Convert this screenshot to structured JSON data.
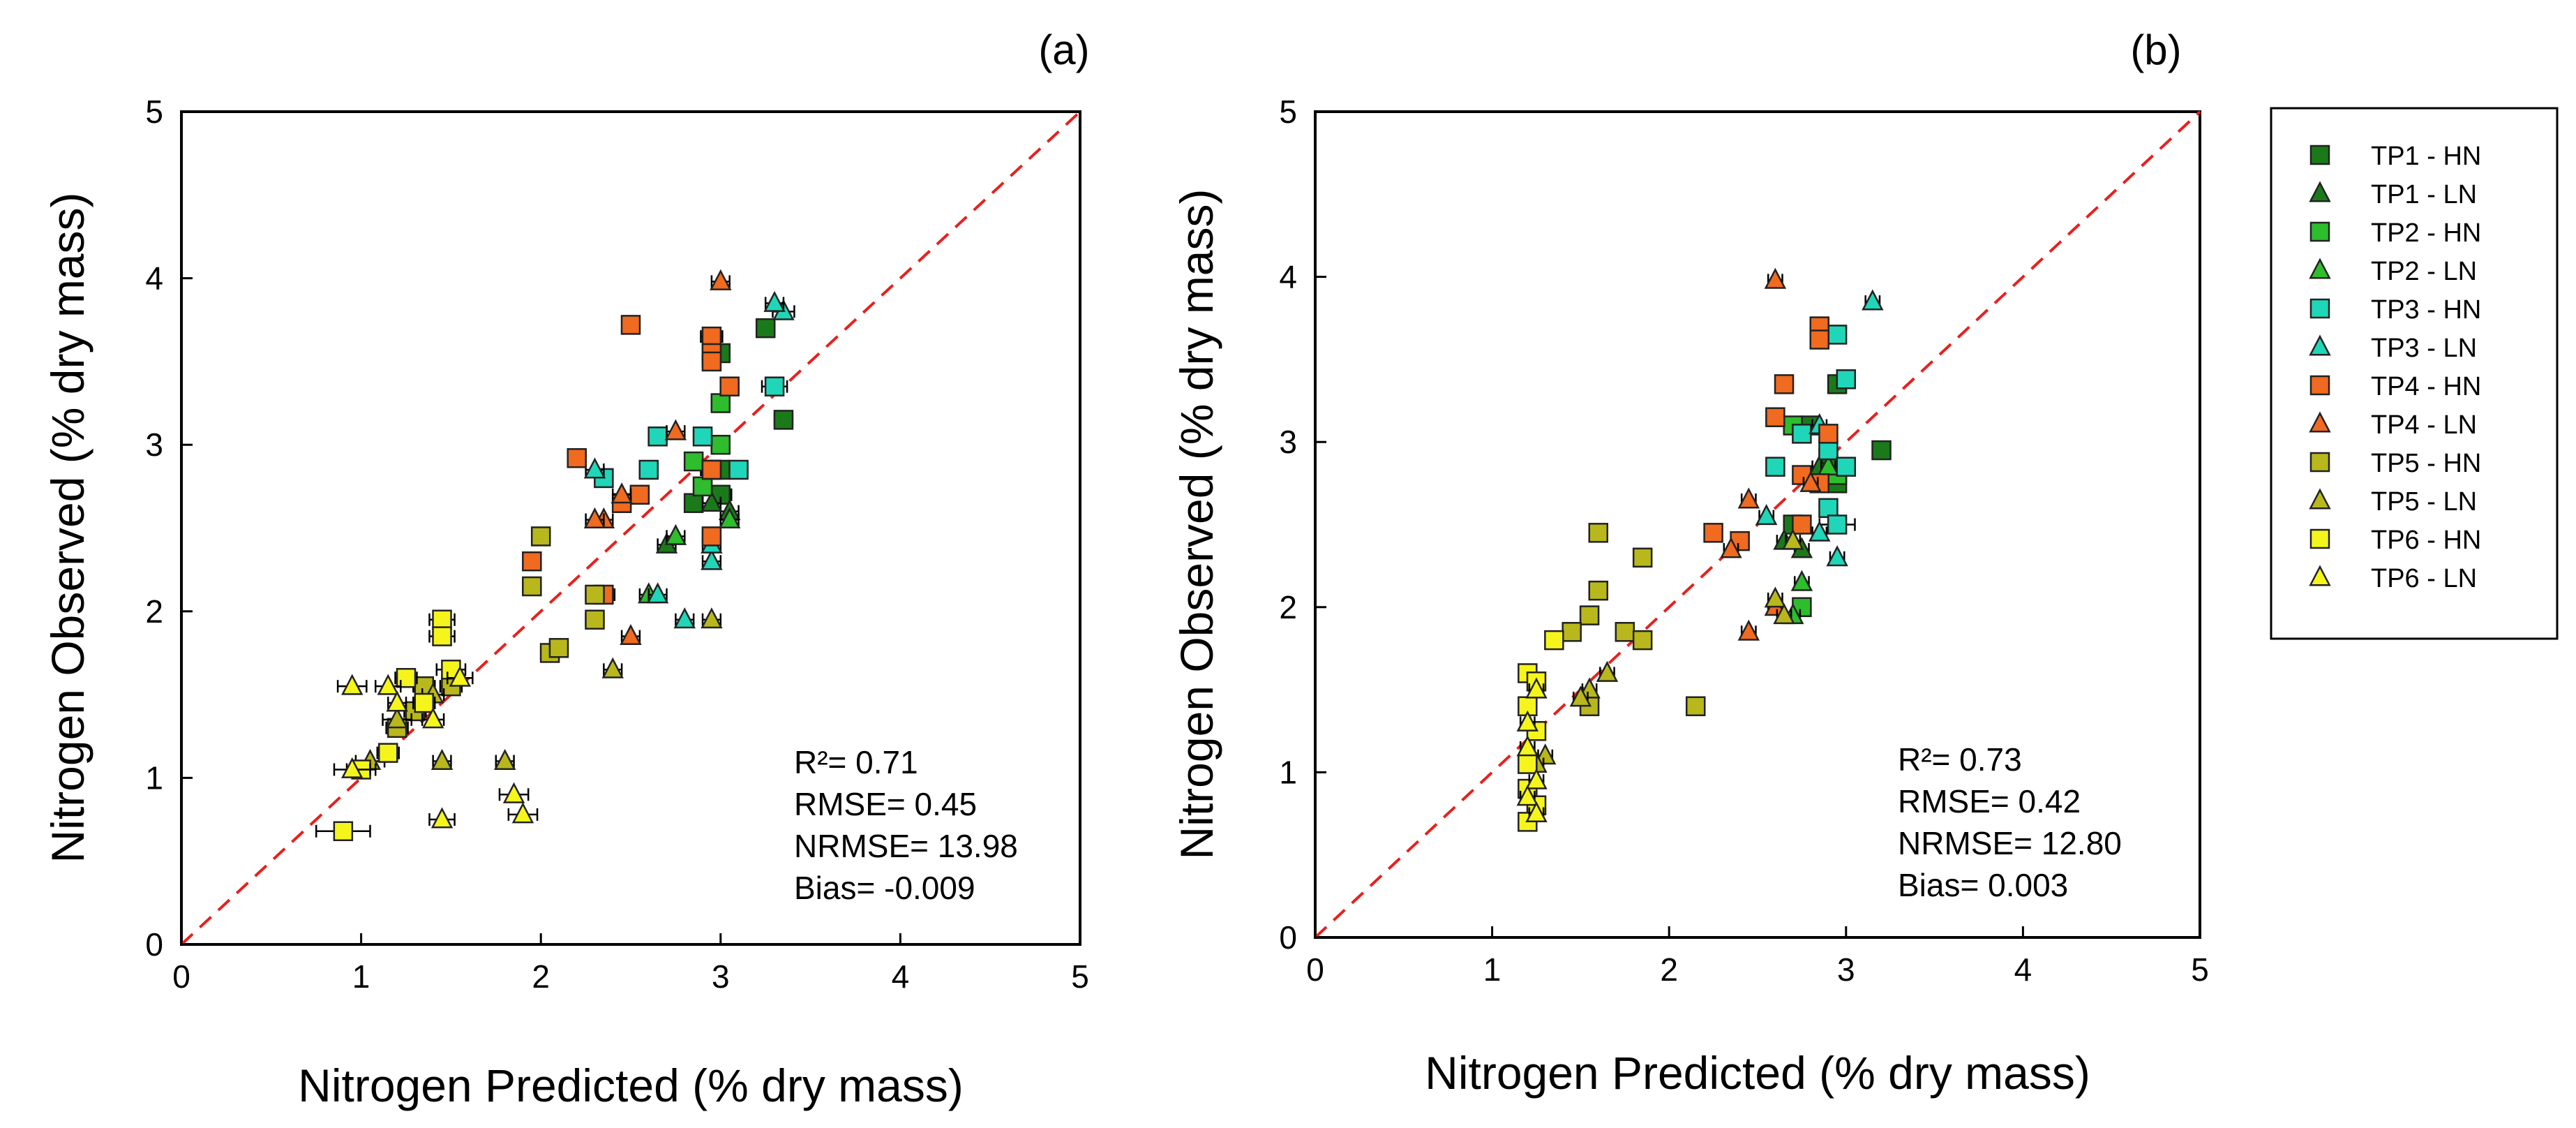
{
  "figure": {
    "legend": [
      {
        "label": "TP1 - HN",
        "marker": "square",
        "color": "#1a7a1a"
      },
      {
        "label": "TP1 - LN",
        "marker": "triangle",
        "color": "#1a7a1a"
      },
      {
        "label": "TP2 - HN",
        "marker": "square",
        "color": "#2dbd2d"
      },
      {
        "label": "TP2 - LN",
        "marker": "triangle",
        "color": "#2dbd2d"
      },
      {
        "label": "TP3 - HN",
        "marker": "square",
        "color": "#1fd6b8"
      },
      {
        "label": "TP3 - LN",
        "marker": "triangle",
        "color": "#1fd6b8"
      },
      {
        "label": "TP4 - HN",
        "marker": "square",
        "color": "#f06a1f"
      },
      {
        "label": "TP4 - LN",
        "marker": "triangle",
        "color": "#f06a1f"
      },
      {
        "label": "TP5 - HN",
        "marker": "square",
        "color": "#b8b81c"
      },
      {
        "label": "TP5 - LN",
        "marker": "triangle",
        "color": "#b8b81c"
      },
      {
        "label": "TP6 - HN",
        "marker": "square",
        "color": "#f5f51c"
      },
      {
        "label": "TP6 - LN",
        "marker": "triangle",
        "color": "#f5f51c"
      }
    ],
    "colors": {
      "reference_line": "#e8201e",
      "marker_edge": "#222222",
      "axis": "#000000"
    }
  },
  "chart_data": [
    {
      "panel": "(a)",
      "type": "scatter",
      "xlabel": "Nitrogen Predicted (% dry mass)",
      "ylabel": "Nitrogen Observed (% dry mass)",
      "xlim": [
        0,
        5
      ],
      "ylim": [
        0,
        5
      ],
      "xticks": [
        "0",
        "1",
        "2",
        "3",
        "4",
        "5"
      ],
      "yticks": [
        "0",
        "1",
        "2",
        "3",
        "4",
        "5"
      ],
      "reference_line": "1:1",
      "stats": [
        "R²= 0.71",
        "RMSE= 0.45",
        "NRMSE= 13.98",
        "Bias= -0.009"
      ],
      "series": [
        {
          "name": "TP1 - HN",
          "points": [
            [
              3.25,
              3.7,
              0.05
            ],
            [
              3.35,
              3.15,
              0.05
            ],
            [
              3.0,
              3.55,
              0.05
            ],
            [
              2.95,
              2.85,
              0.06
            ],
            [
              3.0,
              2.7,
              0.06
            ],
            [
              2.85,
              2.65,
              0.05
            ],
            [
              3.0,
              2.85,
              0.05
            ]
          ]
        },
        {
          "name": "TP1 - LN",
          "points": [
            [
              3.05,
              2.6,
              0.05
            ],
            [
              2.95,
              2.65,
              0.05
            ],
            [
              2.7,
              2.4,
              0.05
            ]
          ]
        },
        {
          "name": "TP2 - HN",
          "points": [
            [
              3.0,
              3.25,
              0.05
            ],
            [
              3.0,
              3.0,
              0.05
            ],
            [
              2.9,
              2.75,
              0.05
            ],
            [
              2.85,
              2.9,
              0.05
            ]
          ]
        },
        {
          "name": "TP2 - LN",
          "points": [
            [
              3.05,
              2.55,
              0.05
            ],
            [
              2.6,
              2.1,
              0.05
            ],
            [
              2.75,
              2.45,
              0.05
            ]
          ]
        },
        {
          "name": "TP3 - HN",
          "points": [
            [
              3.3,
              3.35,
              0.07
            ],
            [
              3.1,
              2.85,
              0.05
            ],
            [
              2.65,
              3.05,
              0.05
            ],
            [
              2.6,
              2.85,
              0.05
            ],
            [
              2.9,
              3.05,
              0.05
            ],
            [
              2.95,
              2.85,
              0.05
            ],
            [
              2.35,
              2.8,
              0.05
            ]
          ]
        },
        {
          "name": "TP3 - LN",
          "points": [
            [
              3.35,
              3.8,
              0.06
            ],
            [
              3.3,
              3.85,
              0.05
            ],
            [
              2.95,
              2.3,
              0.05
            ],
            [
              2.95,
              2.4,
              0.05
            ],
            [
              2.8,
              1.95,
              0.05
            ],
            [
              2.65,
              2.1,
              0.05
            ],
            [
              2.3,
              2.85,
              0.05
            ]
          ]
        },
        {
          "name": "TP4 - HN",
          "points": [
            [
              2.5,
              3.72,
              0.04
            ],
            [
              2.95,
              3.65,
              0.06
            ],
            [
              2.95,
              3.55,
              0.05
            ],
            [
              2.95,
              3.5,
              0.05
            ],
            [
              3.05,
              3.35,
              0.05
            ],
            [
              2.2,
              2.92,
              0.05
            ],
            [
              2.95,
              2.85,
              0.05
            ],
            [
              2.55,
              2.7,
              0.05
            ],
            [
              1.95,
              2.3,
              0.04
            ],
            [
              2.35,
              2.1,
              0.06
            ],
            [
              2.45,
              2.65,
              0.05
            ],
            [
              2.95,
              2.45,
              0.05
            ]
          ]
        },
        {
          "name": "TP4 - LN",
          "points": [
            [
              3.0,
              3.98,
              0.05
            ],
            [
              2.75,
              3.08,
              0.05
            ],
            [
              2.35,
              2.55,
              0.05
            ],
            [
              2.45,
              2.7,
              0.05
            ],
            [
              2.5,
              1.85,
              0.05
            ],
            [
              2.3,
              2.55,
              0.05
            ]
          ]
        },
        {
          "name": "TP5 - HN",
          "points": [
            [
              2.0,
              2.45,
              0.05
            ],
            [
              1.95,
              2.15,
              0.05
            ],
            [
              2.05,
              1.75,
              0.05
            ],
            [
              2.1,
              1.78,
              0.05
            ],
            [
              2.3,
              1.95,
              0.05
            ],
            [
              2.3,
              2.1,
              0.05
            ],
            [
              1.35,
              1.55,
              0.06
            ],
            [
              1.3,
              1.4,
              0.06
            ],
            [
              1.5,
              1.55,
              0.06
            ],
            [
              1.2,
              1.3,
              0.06
            ]
          ]
        },
        {
          "name": "TP5 - LN",
          "points": [
            [
              2.4,
              1.65,
              0.05
            ],
            [
              2.95,
              1.95,
              0.05
            ],
            [
              1.8,
              1.1,
              0.05
            ],
            [
              1.45,
              1.1,
              0.05
            ],
            [
              1.05,
              1.1,
              0.08
            ],
            [
              1.2,
              1.35,
              0.08
            ],
            [
              1.4,
              1.5,
              0.06
            ]
          ]
        },
        {
          "name": "TP6 - HN",
          "points": [
            [
              1.45,
              1.95,
              0.07
            ],
            [
              1.45,
              1.85,
              0.07
            ],
            [
              1.5,
              1.65,
              0.08
            ],
            [
              1.35,
              1.45,
              0.06
            ],
            [
              1.15,
              1.15,
              0.06
            ],
            [
              0.9,
              0.68,
              0.15
            ],
            [
              1.0,
              1.05,
              0.08
            ],
            [
              1.25,
              1.6,
              0.06
            ]
          ]
        },
        {
          "name": "TP6 - LN",
          "points": [
            [
              0.95,
              1.55,
              0.08
            ],
            [
              1.15,
              1.55,
              0.07
            ],
            [
              1.4,
              1.35,
              0.06
            ],
            [
              1.45,
              0.75,
              0.07
            ],
            [
              1.85,
              0.9,
              0.08
            ],
            [
              1.9,
              0.78,
              0.08
            ],
            [
              1.55,
              1.6,
              0.07
            ],
            [
              0.95,
              1.05,
              0.1
            ],
            [
              1.2,
              1.45,
              0.05
            ]
          ]
        }
      ]
    },
    {
      "panel": "(b)",
      "type": "scatter",
      "xlabel": "Nitrogen Predicted (% dry mass)",
      "ylabel": "Nitrogen Observed (% dry mass)",
      "xlim": [
        0,
        5
      ],
      "ylim": [
        0,
        5
      ],
      "xticks": [
        "0",
        "1",
        "2",
        "3",
        "4",
        "5"
      ],
      "yticks": [
        "0",
        "1",
        "2",
        "3",
        "4",
        "5"
      ],
      "reference_line": "1:1",
      "stats": [
        "R²= 0.73",
        "RMSE= 0.42",
        "NRMSE= 12.80",
        "Bias= 0.003"
      ],
      "series": [
        {
          "name": "TP1 - HN",
          "points": [
            [
              3.2,
              2.95,
              0.04
            ],
            [
              2.95,
              3.35,
              0.04
            ],
            [
              2.8,
              3.1,
              0.04
            ],
            [
              2.95,
              2.75,
              0.04
            ],
            [
              2.7,
              2.5,
              0.04
            ],
            [
              2.9,
              2.9,
              0.04
            ]
          ]
        },
        {
          "name": "TP1 - LN",
          "points": [
            [
              2.65,
              2.4,
              0.04
            ],
            [
              2.85,
              2.85,
              0.04
            ],
            [
              2.75,
              2.35,
              0.04
            ]
          ]
        },
        {
          "name": "TP2 - HN",
          "points": [
            [
              2.7,
              3.1,
              0.04
            ],
            [
              2.95,
              2.8,
              0.04
            ],
            [
              2.75,
              2.0,
              0.04
            ]
          ]
        },
        {
          "name": "TP2 - LN",
          "points": [
            [
              2.75,
              2.15,
              0.04
            ],
            [
              2.7,
              1.95,
              0.04
            ],
            [
              2.9,
              2.85,
              0.04
            ]
          ]
        },
        {
          "name": "TP3 - HN",
          "points": [
            [
              3.0,
              3.38,
              0.04
            ],
            [
              2.95,
              3.65,
              0.04
            ],
            [
              2.75,
              3.05,
              0.04
            ],
            [
              2.9,
              2.95,
              0.04
            ],
            [
              3.0,
              2.85,
              0.04
            ],
            [
              2.6,
              2.85,
              0.04
            ],
            [
              2.9,
              2.6,
              0.04
            ],
            [
              2.95,
              2.5,
              0.1
            ]
          ]
        },
        {
          "name": "TP3 - LN",
          "points": [
            [
              3.15,
              3.85,
              0.04
            ],
            [
              2.85,
              2.45,
              0.04
            ],
            [
              2.95,
              2.3,
              0.04
            ],
            [
              2.55,
              2.55,
              0.04
            ],
            [
              2.85,
              3.1,
              0.04
            ]
          ]
        },
        {
          "name": "TP4 - HN",
          "points": [
            [
              2.85,
              3.7,
              0.04
            ],
            [
              2.85,
              3.62,
              0.04
            ],
            [
              2.65,
              3.35,
              0.04
            ],
            [
              2.6,
              3.15,
              0.04
            ],
            [
              2.9,
              3.05,
              0.04
            ],
            [
              2.25,
              2.45,
              0.04
            ],
            [
              2.4,
              2.4,
              0.04
            ],
            [
              2.75,
              2.5,
              0.04
            ],
            [
              2.75,
              2.8,
              0.04
            ],
            [
              2.85,
              2.75,
              0.04
            ]
          ]
        },
        {
          "name": "TP4 - LN",
          "points": [
            [
              2.6,
              3.98,
              0.04
            ],
            [
              2.35,
              2.35,
              0.04
            ],
            [
              2.45,
              2.65,
              0.04
            ],
            [
              2.45,
              1.85,
              0.04
            ],
            [
              2.6,
              2.0,
              0.04
            ],
            [
              2.8,
              2.75,
              0.04
            ]
          ]
        },
        {
          "name": "TP5 - HN",
          "points": [
            [
              1.6,
              2.45,
              0.04
            ],
            [
              1.6,
              2.1,
              0.04
            ],
            [
              1.55,
              1.95,
              0.04
            ],
            [
              1.45,
              1.85,
              0.04
            ],
            [
              1.75,
              1.85,
              0.04
            ],
            [
              1.85,
              1.8,
              0.04
            ],
            [
              1.85,
              2.3,
              0.04
            ],
            [
              2.15,
              1.4,
              0.04
            ],
            [
              1.55,
              1.4,
              0.04
            ]
          ]
        },
        {
          "name": "TP5 - LN",
          "points": [
            [
              1.55,
              1.5,
              0.04
            ],
            [
              1.5,
              1.45,
              0.04
            ],
            [
              1.3,
              1.1,
              0.04
            ],
            [
              1.25,
              1.05,
              0.04
            ],
            [
              1.65,
              1.6,
              0.04
            ],
            [
              2.6,
              2.05,
              0.04
            ],
            [
              2.65,
              1.95,
              0.04
            ],
            [
              2.7,
              2.4,
              0.04
            ]
          ]
        },
        {
          "name": "TP6 - HN",
          "points": [
            [
              1.35,
              1.8,
              0.04
            ],
            [
              1.2,
              1.6,
              0.04
            ],
            [
              1.25,
              1.55,
              0.04
            ],
            [
              1.2,
              1.4,
              0.04
            ],
            [
              1.25,
              1.25,
              0.04
            ],
            [
              1.2,
              1.05,
              0.04
            ],
            [
              1.2,
              0.9,
              0.04
            ],
            [
              1.25,
              0.8,
              0.04
            ],
            [
              1.2,
              0.7,
              0.04
            ]
          ]
        },
        {
          "name": "TP6 - LN",
          "points": [
            [
              1.25,
              1.5,
              0.04
            ],
            [
              1.2,
              1.15,
              0.04
            ],
            [
              1.25,
              0.95,
              0.04
            ],
            [
              1.2,
              0.85,
              0.04
            ],
            [
              1.25,
              0.75,
              0.04
            ],
            [
              1.2,
              1.3,
              0.04
            ]
          ]
        }
      ]
    }
  ]
}
